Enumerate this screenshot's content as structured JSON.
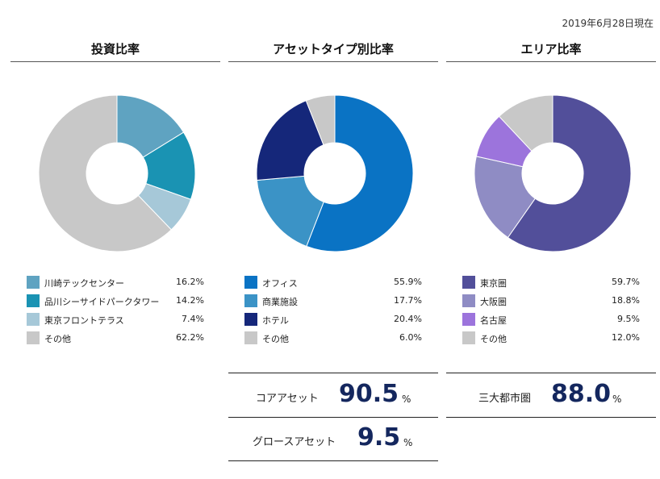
{
  "date": "2019年6月28日現在",
  "chart_data": [
    {
      "type": "pie",
      "title": "投資比率",
      "categories": [
        "川崎テックセンター",
        "品川シーサイドパークタワー",
        "東京フロントテラス",
        "その他"
      ],
      "values": [
        16.2,
        14.2,
        7.4,
        62.2
      ],
      "value_labels": [
        "16.2%",
        "14.2%",
        "7.4%",
        "62.2%"
      ],
      "colors": [
        "#5fa3c1",
        "#1a93b3",
        "#a6c8d8",
        "#c8c8c8"
      ]
    },
    {
      "type": "pie",
      "title": "アセットタイプ別比率",
      "categories": [
        "オフィス",
        "商業施設",
        "ホテル",
        "その他"
      ],
      "values": [
        55.9,
        17.7,
        20.4,
        6.0
      ],
      "value_labels": [
        "55.9%",
        "17.7%",
        "20.4%",
        "6.0%"
      ],
      "colors": [
        "#0a73c4",
        "#3b93c6",
        "#15277a",
        "#c8c8c8"
      ]
    },
    {
      "type": "pie",
      "title": "エリア比率",
      "categories": [
        "東京圏",
        "大阪圏",
        "名古屋",
        "その他"
      ],
      "values": [
        59.7,
        18.8,
        9.5,
        12.0
      ],
      "value_labels": [
        "59.7%",
        "18.8%",
        "9.5%",
        "12.0%"
      ],
      "colors": [
        "#524f9a",
        "#8f8cc4",
        "#9c74dc",
        "#c8c8c8"
      ]
    }
  ],
  "stats": {
    "core": {
      "label": "コアアセット",
      "value": "90.5",
      "unit": "%"
    },
    "growth": {
      "label": "グロースアセット",
      "value": "9.5",
      "unit": "%"
    },
    "metro": {
      "label": "三大都市圏",
      "value": "88.0",
      "unit": "%"
    }
  }
}
